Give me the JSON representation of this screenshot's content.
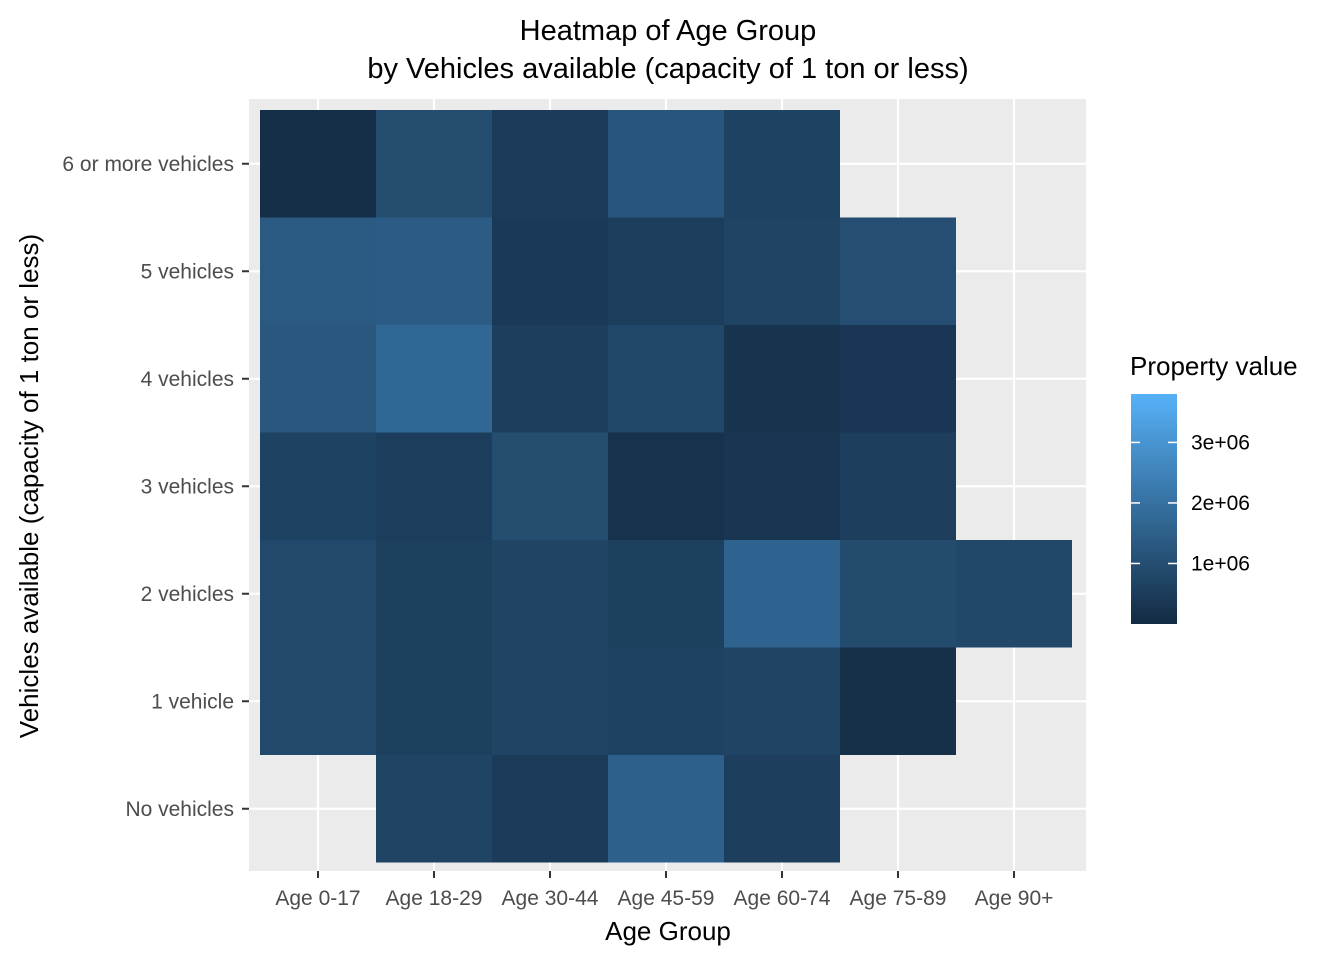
{
  "chart_data": {
    "type": "heatmap",
    "title": [
      "Heatmap of Age Group",
      "by Vehicles available (capacity of 1 ton or less)"
    ],
    "xlabel": "Age Group",
    "ylabel": "Vehicles available (capacity of 1 ton or less)",
    "x_categories": [
      "Age 0-17",
      "Age 18-29",
      "Age 30-44",
      "Age 45-59",
      "Age 60-74",
      "Age 75-89",
      "Age 90+"
    ],
    "y_categories": [
      "No vehicles",
      "1 vehicle",
      "2 vehicles",
      "3 vehicles",
      "4 vehicles",
      "5 vehicles",
      "6 or more vehicles"
    ],
    "cells": [
      {
        "x": "Age 18-29",
        "y": "No vehicles",
        "value": 700000
      },
      {
        "x": "Age 30-44",
        "y": "No vehicles",
        "value": 450000
      },
      {
        "x": "Age 45-59",
        "y": "No vehicles",
        "value": 1500000
      },
      {
        "x": "Age 60-74",
        "y": "No vehicles",
        "value": 550000
      },
      {
        "x": "Age 0-17",
        "y": "1 vehicle",
        "value": 850000
      },
      {
        "x": "Age 18-29",
        "y": "1 vehicle",
        "value": 600000
      },
      {
        "x": "Age 30-44",
        "y": "1 vehicle",
        "value": 700000
      },
      {
        "x": "Age 45-59",
        "y": "1 vehicle",
        "value": 650000
      },
      {
        "x": "Age 60-74",
        "y": "1 vehicle",
        "value": 700000
      },
      {
        "x": "Age 75-89",
        "y": "1 vehicle",
        "value": 150000
      },
      {
        "x": "Age 0-17",
        "y": "2 vehicles",
        "value": 850000
      },
      {
        "x": "Age 18-29",
        "y": "2 vehicles",
        "value": 600000
      },
      {
        "x": "Age 30-44",
        "y": "2 vehicles",
        "value": 700000
      },
      {
        "x": "Age 45-59",
        "y": "2 vehicles",
        "value": 600000
      },
      {
        "x": "Age 60-74",
        "y": "2 vehicles",
        "value": 1600000
      },
      {
        "x": "Age 75-89",
        "y": "2 vehicles",
        "value": 900000
      },
      {
        "x": "Age 90+",
        "y": "2 vehicles",
        "value": 800000
      },
      {
        "x": "Age 0-17",
        "y": "3 vehicles",
        "value": 650000
      },
      {
        "x": "Age 18-29",
        "y": "3 vehicles",
        "value": 500000
      },
      {
        "x": "Age 30-44",
        "y": "3 vehicles",
        "value": 950000
      },
      {
        "x": "Age 45-59",
        "y": "3 vehicles",
        "value": 200000
      },
      {
        "x": "Age 60-74",
        "y": "3 vehicles",
        "value": 300000
      },
      {
        "x": "Age 75-89",
        "y": "3 vehicles",
        "value": 550000
      },
      {
        "x": "Age 0-17",
        "y": "4 vehicles",
        "value": 1250000
      },
      {
        "x": "Age 18-29",
        "y": "4 vehicles",
        "value": 1700000
      },
      {
        "x": "Age 30-44",
        "y": "4 vehicles",
        "value": 550000
      },
      {
        "x": "Age 45-59",
        "y": "4 vehicles",
        "value": 800000
      },
      {
        "x": "Age 60-74",
        "y": "4 vehicles",
        "value": 250000
      },
      {
        "x": "Age 75-89",
        "y": "4 vehicles",
        "value": 350000
      },
      {
        "x": "Age 0-17",
        "y": "5 vehicles",
        "value": 1300000
      },
      {
        "x": "Age 18-29",
        "y": "5 vehicles",
        "value": 1400000
      },
      {
        "x": "Age 30-44",
        "y": "5 vehicles",
        "value": 400000
      },
      {
        "x": "Age 45-59",
        "y": "5 vehicles",
        "value": 500000
      },
      {
        "x": "Age 60-74",
        "y": "5 vehicles",
        "value": 700000
      },
      {
        "x": "Age 75-89",
        "y": "5 vehicles",
        "value": 1000000
      },
      {
        "x": "Age 0-17",
        "y": "6 or more vehicles",
        "value": 100000
      },
      {
        "x": "Age 18-29",
        "y": "6 or more vehicles",
        "value": 950000
      },
      {
        "x": "Age 30-44",
        "y": "6 or more vehicles",
        "value": 450000
      },
      {
        "x": "Age 45-59",
        "y": "6 or more vehicles",
        "value": 1200000
      },
      {
        "x": "Age 60-74",
        "y": "6 or more vehicles",
        "value": 650000
      }
    ],
    "legend": {
      "title": "Property value",
      "placement": "right",
      "range": [
        0,
        3800000
      ],
      "ticks": [
        {
          "value": 1000000,
          "label": "1e+06"
        },
        {
          "value": 2000000,
          "label": "2e+06"
        },
        {
          "value": 3000000,
          "label": "3e+06"
        }
      ],
      "color_low": "#132b43",
      "color_high": "#56b1f7"
    },
    "panel_background": "#ebebeb",
    "grid": true
  }
}
